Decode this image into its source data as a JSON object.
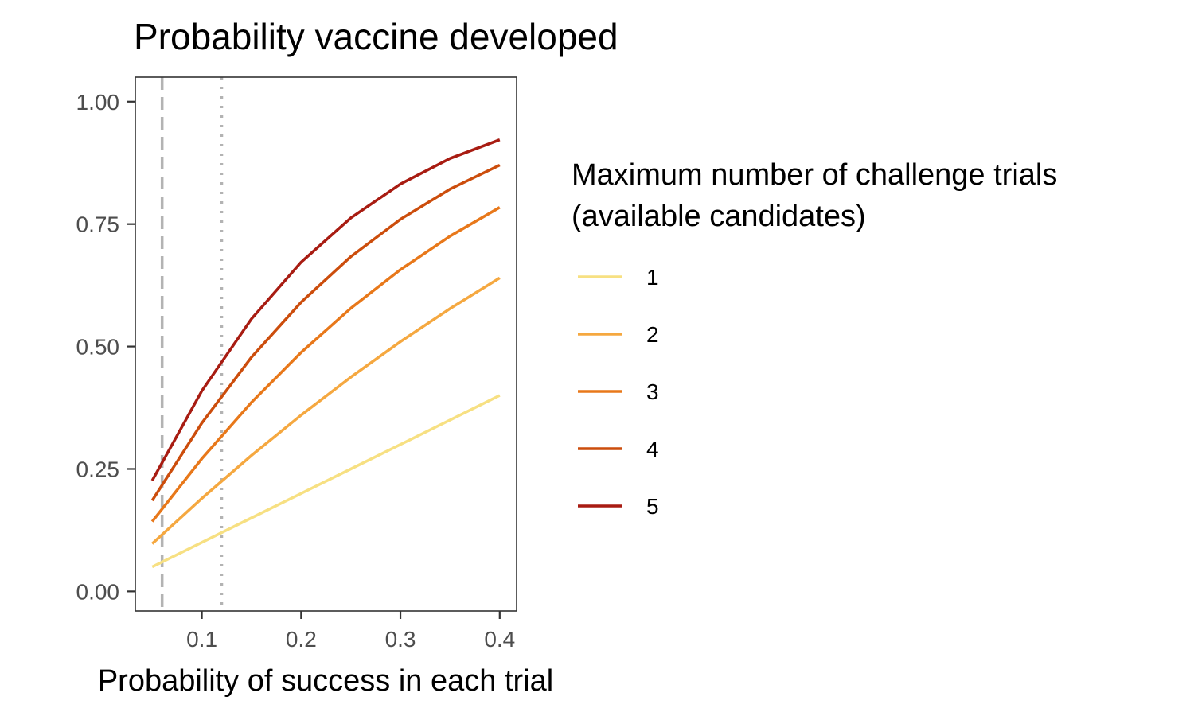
{
  "chart_data": {
    "type": "line",
    "title": "Probability vaccine developed",
    "xlabel": "Probability of success in each trial",
    "ylabel": "",
    "xlim": [
      0.033,
      0.417
    ],
    "ylim": [
      -0.04,
      1.05
    ],
    "x_ticks": [
      {
        "value": 0.1,
        "label": "0.1"
      },
      {
        "value": 0.2,
        "label": "0.2"
      },
      {
        "value": 0.3,
        "label": "0.3"
      },
      {
        "value": 0.4,
        "label": "0.4"
      }
    ],
    "y_ticks": [
      {
        "value": 0.0,
        "label": "0.00"
      },
      {
        "value": 0.25,
        "label": "0.25"
      },
      {
        "value": 0.5,
        "label": "0.50"
      },
      {
        "value": 0.75,
        "label": "0.75"
      },
      {
        "value": 1.0,
        "label": "1.00"
      }
    ],
    "grid": false,
    "legend_position": "right",
    "legend_title_lines": [
      "Maximum number of challenge trials",
      "(available candidates)"
    ],
    "reference_lines": [
      {
        "x": 0.06,
        "style": "dashed",
        "color": "#b3b3b3"
      },
      {
        "x": 0.12,
        "style": "dotted",
        "color": "#b3b3b3"
      }
    ],
    "x": [
      0.05,
      0.1,
      0.15,
      0.2,
      0.25,
      0.3,
      0.35,
      0.4
    ],
    "series": [
      {
        "name": "1",
        "color": "#f7e082",
        "values": [
          0.05,
          0.1,
          0.15,
          0.2,
          0.25,
          0.3,
          0.35,
          0.4
        ]
      },
      {
        "name": "2",
        "color": "#f5a840",
        "values": [
          0.0975,
          0.19,
          0.2775,
          0.36,
          0.4375,
          0.51,
          0.5775,
          0.64
        ]
      },
      {
        "name": "3",
        "color": "#e8781a",
        "values": [
          0.1426,
          0.271,
          0.3859,
          0.488,
          0.5781,
          0.657,
          0.7254,
          0.784
        ]
      },
      {
        "name": "4",
        "color": "#cc4d0c",
        "values": [
          0.1855,
          0.3439,
          0.478,
          0.5904,
          0.6836,
          0.7599,
          0.8215,
          0.8704
        ]
      },
      {
        "name": "5",
        "color": "#a81c12",
        "values": [
          0.2262,
          0.4095,
          0.5563,
          0.6723,
          0.7627,
          0.8319,
          0.884,
          0.9222
        ]
      }
    ]
  }
}
